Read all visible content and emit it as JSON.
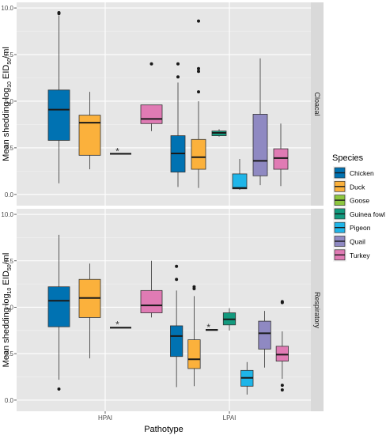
{
  "chart_data": {
    "type": "boxplot",
    "x_axis": {
      "label": "Pathotype",
      "categories": [
        "HPAI",
        "LPAI"
      ]
    },
    "y_axis": {
      "label_prefix": "Mean shedding log",
      "label_sub": "10",
      "label_mid": " EID",
      "label_sub2": "50",
      "label_suffix": "/ml",
      "ylim": [
        -0.6,
        10.3
      ],
      "ticks": [
        "0.0",
        "2.5",
        "5.0",
        "7.5",
        "10.0"
      ]
    },
    "legend": {
      "title": "Species",
      "position": "right",
      "items": [
        {
          "name": "Chicken",
          "color": "#0072B2"
        },
        {
          "name": "Duck",
          "color": "#FBB13C"
        },
        {
          "name": "Goose",
          "color": "#8DC63F"
        },
        {
          "name": "Guinea fowl",
          "color": "#129A7E"
        },
        {
          "name": "Pigeon",
          "color": "#1FB5E8"
        },
        {
          "name": "Quail",
          "color": "#8F89C2"
        },
        {
          "name": "Turkey",
          "color": "#E07BB4"
        }
      ]
    },
    "grid": true,
    "panels": [
      {
        "strip": "Cloacal",
        "star_labels": [
          "*"
        ],
        "stars": [
          {
            "category": "HPAI",
            "species": "Goose",
            "y": 2.35,
            "text_index": 0
          }
        ],
        "boxes": [
          {
            "category": "HPAI",
            "species": "Chicken",
            "min": 0.6,
            "q1": 2.9,
            "median": 4.55,
            "q3": 5.6,
            "max": 9.6,
            "outliers": [
              9.7,
              9.75
            ]
          },
          {
            "category": "HPAI",
            "species": "Duck",
            "min": 1.35,
            "q1": 2.1,
            "median": 3.85,
            "q3": 4.25,
            "max": 5.5,
            "outliers": []
          },
          {
            "category": "HPAI",
            "species": "Goose",
            "min": 2.18,
            "q1": 2.18,
            "median": 2.18,
            "q3": 2.18,
            "max": 2.18,
            "outliers": []
          },
          {
            "category": "HPAI",
            "species": "Turkey",
            "min": 3.4,
            "q1": 3.8,
            "median": 4.05,
            "q3": 4.8,
            "max": 4.8,
            "outliers": [
              7.0
            ]
          },
          {
            "category": "LPAI",
            "species": "Chicken",
            "min": 0.4,
            "q1": 1.2,
            "median": 2.2,
            "q3": 3.15,
            "max": 6.0,
            "outliers": [
              6.3,
              7.0
            ]
          },
          {
            "category": "LPAI",
            "species": "Duck",
            "min": 0.35,
            "q1": 1.35,
            "median": 2.0,
            "q3": 2.95,
            "max": 5.0,
            "outliers": [
              5.5,
              6.6,
              6.75,
              9.3
            ]
          },
          {
            "category": "LPAI",
            "species": "Guinea fowl",
            "min": 3.1,
            "q1": 3.15,
            "median": 3.3,
            "q3": 3.4,
            "max": 3.5,
            "outliers": []
          },
          {
            "category": "LPAI",
            "species": "Pigeon",
            "min": 0.25,
            "q1": 0.3,
            "median": 0.35,
            "q3": 1.1,
            "max": 1.9,
            "outliers": []
          },
          {
            "category": "LPAI",
            "species": "Quail",
            "min": 0.5,
            "q1": 1.0,
            "median": 1.8,
            "q3": 4.3,
            "max": 7.3,
            "outliers": []
          },
          {
            "category": "LPAI",
            "species": "Turkey",
            "min": 0.45,
            "q1": 1.35,
            "median": 1.95,
            "q3": 2.45,
            "max": 3.8,
            "outliers": []
          }
        ]
      },
      {
        "strip": "Respiratory",
        "star_labels": [
          "*",
          "*"
        ],
        "stars": [
          {
            "category": "HPAI",
            "species": "Goose",
            "y": 4.1,
            "text_index": 0
          },
          {
            "category": "LPAI",
            "species": "Goose",
            "y": 3.95,
            "text_index": 1
          }
        ],
        "boxes": [
          {
            "category": "HPAI",
            "species": "Chicken",
            "min": 1.1,
            "q1": 3.95,
            "median": 5.35,
            "q3": 6.1,
            "max": 8.9,
            "outliers": [
              0.6
            ]
          },
          {
            "category": "HPAI",
            "species": "Duck",
            "min": 2.25,
            "q1": 4.45,
            "median": 5.5,
            "q3": 6.5,
            "max": 7.35,
            "outliers": []
          },
          {
            "category": "HPAI",
            "species": "Goose",
            "min": 3.9,
            "q1": 3.9,
            "median": 3.9,
            "q3": 3.9,
            "max": 3.9,
            "outliers": []
          },
          {
            "category": "HPAI",
            "species": "Turkey",
            "min": 4.45,
            "q1": 4.7,
            "median": 5.1,
            "q3": 5.9,
            "max": 7.5,
            "outliers": []
          },
          {
            "category": "LPAI",
            "species": "Chicken",
            "min": 0.7,
            "q1": 2.35,
            "median": 3.45,
            "q3": 4.0,
            "max": 5.9,
            "outliers": [
              6.5,
              7.2
            ]
          },
          {
            "category": "LPAI",
            "species": "Duck",
            "min": 0.75,
            "q1": 1.7,
            "median": 2.2,
            "q3": 3.25,
            "max": 5.6,
            "outliers": [
              6.0,
              6.1
            ]
          },
          {
            "category": "LPAI",
            "species": "Goose",
            "min": 3.78,
            "q1": 3.78,
            "median": 3.78,
            "q3": 3.78,
            "max": 3.78,
            "outliers": []
          },
          {
            "category": "LPAI",
            "species": "Guinea fowl",
            "min": 3.75,
            "q1": 4.05,
            "median": 4.35,
            "q3": 4.7,
            "max": 4.95,
            "outliers": []
          },
          {
            "category": "LPAI",
            "species": "Pigeon",
            "min": 0.3,
            "q1": 0.75,
            "median": 1.2,
            "q3": 1.6,
            "max": 2.05,
            "outliers": []
          },
          {
            "category": "LPAI",
            "species": "Quail",
            "min": 1.75,
            "q1": 2.75,
            "median": 3.6,
            "q3": 4.25,
            "max": 4.8,
            "outliers": []
          },
          {
            "category": "LPAI",
            "species": "Turkey",
            "min": 1.15,
            "q1": 2.1,
            "median": 2.45,
            "q3": 2.9,
            "max": 3.7,
            "outliers": [
              0.55,
              0.8,
              5.25,
              5.3
            ]
          }
        ]
      }
    ]
  }
}
